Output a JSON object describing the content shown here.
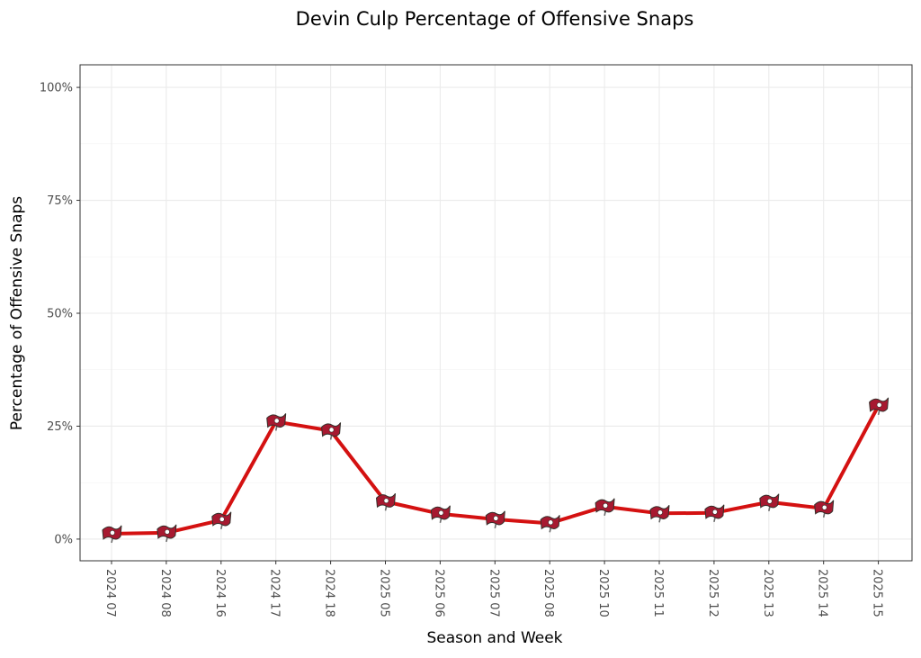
{
  "chart_data": {
    "type": "line",
    "title": "Devin Culp Percentage of Offensive Snaps",
    "xlabel": "Season and Week",
    "ylabel": "Percentage of Offensive Snaps",
    "categories": [
      "2024 07",
      "2024 08",
      "2024 16",
      "2024 17",
      "2024 18",
      "2025 05",
      "2025 06",
      "2025 07",
      "2025 08",
      "2025 10",
      "2025 11",
      "2025 12",
      "2025 13",
      "2025 14",
      "2025 15"
    ],
    "series": [
      {
        "values": [
          1.2,
          1.4,
          4.2,
          26.0,
          24.0,
          8.3,
          5.6,
          4.4,
          3.5,
          7.2,
          5.7,
          5.8,
          8.2,
          6.8,
          29.5
        ]
      }
    ],
    "ylim": [
      -4.8,
      105
    ],
    "yticks": [
      0,
      25,
      50,
      75,
      100
    ],
    "ytick_labels": [
      "0%",
      "25%",
      "50%",
      "75%",
      "100%"
    ],
    "grid": true,
    "legend": "none",
    "colors": {
      "line": "#d41111",
      "marker": "#a71930",
      "marker_stripe": "#34302b"
    },
    "marker_icon": "buccaneers-flag-icon"
  }
}
